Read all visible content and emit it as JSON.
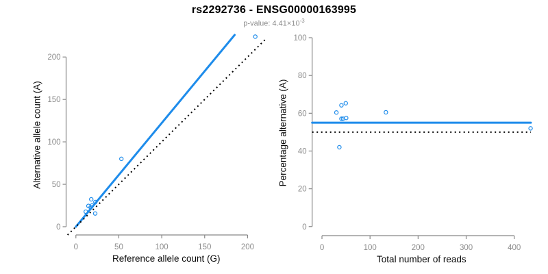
{
  "header": {
    "title": "rs2292736 - ENSG00000163995",
    "subtitle_base": "p-value: 4.41×10",
    "subtitle_exponent": "-3"
  },
  "colors": {
    "accent": "#1E8CEB",
    "black": "#000000",
    "axis": "#878787",
    "tick_label": "#8c8c8c",
    "axis_title": "#0a0a0a",
    "background": "#ffffff"
  },
  "chart_data": [
    {
      "name": "left-plot",
      "type": "scatter",
      "xlabel": "Reference allele count (G)",
      "ylabel": "Alternative allele count (A)",
      "xticks": [
        0,
        50,
        100,
        150,
        200
      ],
      "yticks": [
        0,
        50,
        100,
        150,
        200
      ],
      "xlim": [
        -11.4,
        222
      ],
      "ylim": [
        -9.7,
        226
      ],
      "grid": false,
      "box": {
        "l": 96.5,
        "r": 389,
        "t": 51,
        "b": 343
      },
      "points": [
        [
          11.5,
          17.7
        ],
        [
          14.6,
          24.5
        ],
        [
          17.9,
          32.3
        ],
        [
          17.2,
          22.8
        ],
        [
          18.9,
          25.1
        ],
        [
          22.7,
          29.1
        ],
        [
          22.5,
          15.6
        ],
        [
          53,
          80
        ],
        [
          209,
          224
        ]
      ],
      "lines": [
        {
          "name": "fit-line",
          "slope": 1.222,
          "intercept": 0,
          "x_start": 0,
          "x_end": 209,
          "style": "solid",
          "color": "accent",
          "width": 3
        },
        {
          "name": "identity-line",
          "slope": 1,
          "intercept": 0,
          "style": "dotted",
          "color": "black",
          "width": 2
        }
      ]
    },
    {
      "name": "right-plot",
      "type": "scatter",
      "xlabel": "Total number of reads",
      "ylabel": "Percentage alternative (A)",
      "xticks": [
        0,
        100,
        200,
        300,
        400
      ],
      "yticks": [
        0,
        20,
        40,
        60,
        80,
        100
      ],
      "xlim": [
        -20.4,
        434.6
      ],
      "ylim": [
        -4.8,
        104
      ],
      "grid": false,
      "box": {
        "l": 455.7,
        "r": 775,
        "t": 44,
        "b": 344
      },
      "points": [
        [
          30,
          60.4
        ],
        [
          40.5,
          64.2
        ],
        [
          49.5,
          65.3
        ],
        [
          40.5,
          57.1
        ],
        [
          43.8,
          57.1
        ],
        [
          50.4,
          57.5
        ],
        [
          36.2,
          42
        ],
        [
          133,
          60.5
        ],
        [
          434,
          52
        ]
      ],
      "lines": [
        {
          "name": "mean-line",
          "slope": 0,
          "intercept": 55,
          "style": "solid",
          "color": "accent",
          "width": 3
        },
        {
          "name": "null-line",
          "slope": 0,
          "intercept": 50,
          "style": "dotted",
          "color": "black",
          "width": 2
        }
      ]
    }
  ]
}
